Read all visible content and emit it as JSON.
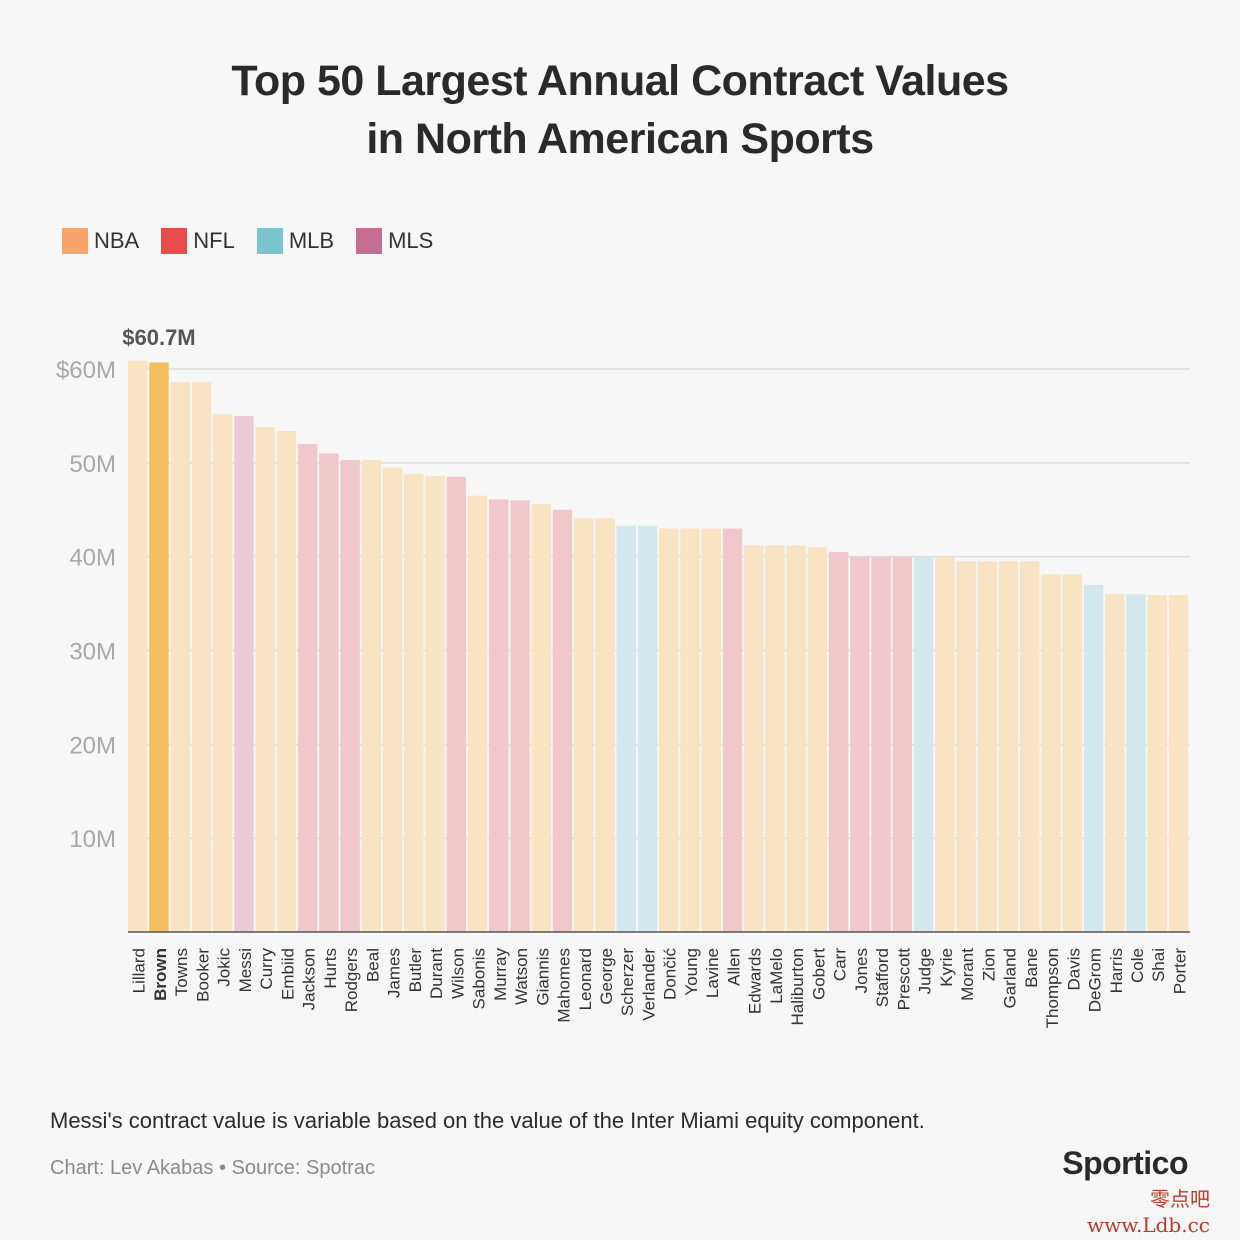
{
  "title_line1": "Top 50 Largest Annual Contract Values",
  "title_line2": "in North American Sports",
  "legend": [
    {
      "label": "NBA",
      "color": "#F7A56B"
    },
    {
      "label": "NFL",
      "color": "#E84C4C"
    },
    {
      "label": "MLB",
      "color": "#7CC5CF"
    },
    {
      "label": "MLS",
      "color": "#C46E92"
    }
  ],
  "footnote": "Messi's contract value is variable based on the value of the Inter Miami equity component.",
  "credit": "Chart: Lev Akabas • Source: Spotrac",
  "brand": "Sportico",
  "watermark_line1": "零点吧",
  "watermark_line2": "www.Ldb.cc",
  "chart_data": {
    "type": "bar",
    "title": "Top 50 Largest Annual Contract Values in North American Sports",
    "xlabel": "",
    "ylabel": "",
    "ylim": [
      0,
      60
    ],
    "yticks": [
      10,
      20,
      30,
      40,
      50,
      60
    ],
    "ytick_labels": [
      "10M",
      "20M",
      "30M",
      "40M",
      "50M",
      "$60M"
    ],
    "grid": true,
    "legend_position": "top-left",
    "highlight": {
      "category": "Brown",
      "label": "$60.7M"
    },
    "colors": {
      "NBA": "#F8E3C3",
      "NFL": "#F0C7CA",
      "MLB": "#D3E8EC",
      "MLS": "#EACAD6",
      "highlight": "#F3BE5E"
    },
    "categories": [
      "Lillard",
      "Brown",
      "Towns",
      "Booker",
      "Jokic",
      "Messi",
      "Curry",
      "Embiid",
      "Jackson",
      "Hurts",
      "Rodgers",
      "Beal",
      "James",
      "Butler",
      "Durant",
      "Wilson",
      "Sabonis",
      "Murray",
      "Watson",
      "Giannis",
      "Mahomes",
      "Leonard",
      "George",
      "Scherzer",
      "Verlander",
      "Dončić",
      "Young",
      "Lavine",
      "Allen",
      "Edwards",
      "LaMelo",
      "Haliburton",
      "Gobert",
      "Carr",
      "Jones",
      "Stafford",
      "Prescott",
      "Judge",
      "Kyrie",
      "Morant",
      "Zion",
      "Garland",
      "Bane",
      "Thompson",
      "Davis",
      "DeGrom",
      "Harris",
      "Cole",
      "Shai",
      "Porter"
    ],
    "leagues": [
      "NBA",
      "NBA",
      "NBA",
      "NBA",
      "NBA",
      "MLS",
      "NBA",
      "NBA",
      "NFL",
      "NFL",
      "NFL",
      "NBA",
      "NBA",
      "NBA",
      "NBA",
      "NFL",
      "NBA",
      "NFL",
      "NFL",
      "NBA",
      "NFL",
      "NBA",
      "NBA",
      "MLB",
      "MLB",
      "NBA",
      "NBA",
      "NBA",
      "NFL",
      "NBA",
      "NBA",
      "NBA",
      "NBA",
      "NFL",
      "NFL",
      "NFL",
      "NFL",
      "MLB",
      "NBA",
      "NBA",
      "NBA",
      "NBA",
      "NBA",
      "NBA",
      "NBA",
      "MLB",
      "NBA",
      "MLB",
      "NBA",
      "NBA"
    ],
    "values": [
      60.9,
      60.7,
      58.6,
      58.6,
      55.2,
      55.0,
      53.8,
      53.4,
      52.0,
      51.0,
      50.3,
      50.3,
      49.5,
      48.8,
      48.6,
      48.5,
      46.5,
      46.1,
      46.0,
      45.6,
      45.0,
      44.1,
      44.1,
      43.3,
      43.3,
      43.0,
      43.0,
      43.0,
      43.0,
      41.2,
      41.2,
      41.2,
      41.0,
      40.5,
      40.0,
      40.0,
      40.0,
      40.0,
      40.0,
      39.5,
      39.5,
      39.5,
      39.5,
      38.1,
      38.1,
      37.0,
      36.0,
      36.0,
      35.9,
      35.9
    ]
  }
}
